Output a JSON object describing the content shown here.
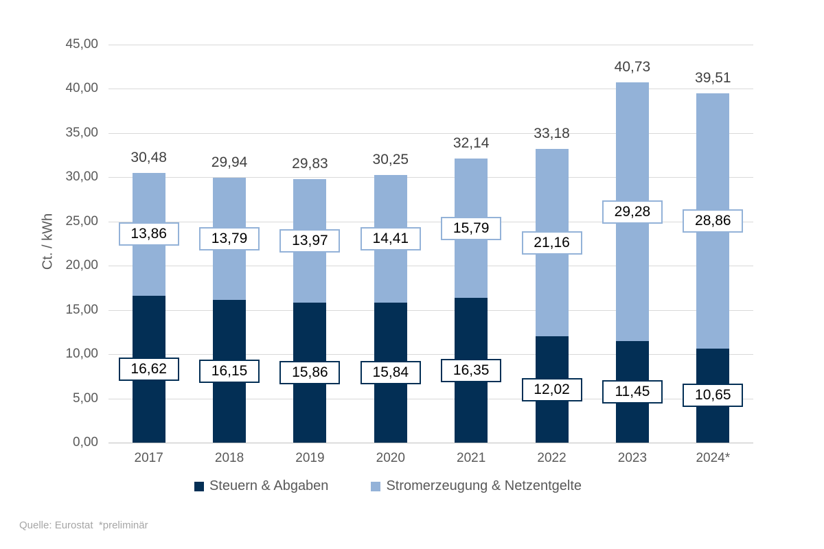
{
  "source_note": "Quelle: Eurostat  *preliminär",
  "colors": {
    "series_dark": "#032F55",
    "series_light": "#93B2D8",
    "gridline": "#D9D9D9",
    "axis_line": "#BFBFBF",
    "tick_text": "#595959",
    "total_text": "#404040",
    "source_text": "#A6A6A6",
    "label_box_bg": "#FFFFFF"
  },
  "chart_data": {
    "type": "bar",
    "stacked": true,
    "title": "",
    "xlabel": "",
    "ylabel": "Ct. / kWh",
    "ylim": [
      0,
      45
    ],
    "ytick_step": 5,
    "ytick_labels": [
      "0,00",
      "5,00",
      "10,00",
      "15,00",
      "20,00",
      "25,00",
      "30,00",
      "35,00",
      "40,00",
      "45,00"
    ],
    "grid": true,
    "legend_position": "bottom",
    "categories": [
      "2017",
      "2018",
      "2019",
      "2020",
      "2021",
      "2022",
      "2023",
      "2024*"
    ],
    "series": [
      {
        "name": "Steuern & Abgaben",
        "color": "#032F55",
        "values": [
          16.62,
          16.15,
          15.86,
          15.84,
          16.35,
          12.02,
          11.45,
          10.65
        ],
        "labels": [
          "16,62",
          "16,15",
          "15,86",
          "15,84",
          "16,35",
          "12,02",
          "11,45",
          "10,65"
        ]
      },
      {
        "name": "Stromerzeugung & Netzentgelte",
        "color": "#93B2D8",
        "values": [
          13.86,
          13.79,
          13.97,
          14.41,
          15.79,
          21.16,
          29.28,
          28.86
        ],
        "labels": [
          "13,86",
          "13,79",
          "13,97",
          "14,41",
          "15,79",
          "21,16",
          "29,28",
          "28,86"
        ]
      }
    ],
    "totals": [
      "30,48",
      "29,94",
      "29,83",
      "30,25",
      "32,14",
      "33,18",
      "40,73",
      "39,51"
    ],
    "total_values": [
      30.48,
      29.94,
      29.83,
      30.25,
      32.14,
      33.18,
      40.73,
      39.51
    ]
  }
}
